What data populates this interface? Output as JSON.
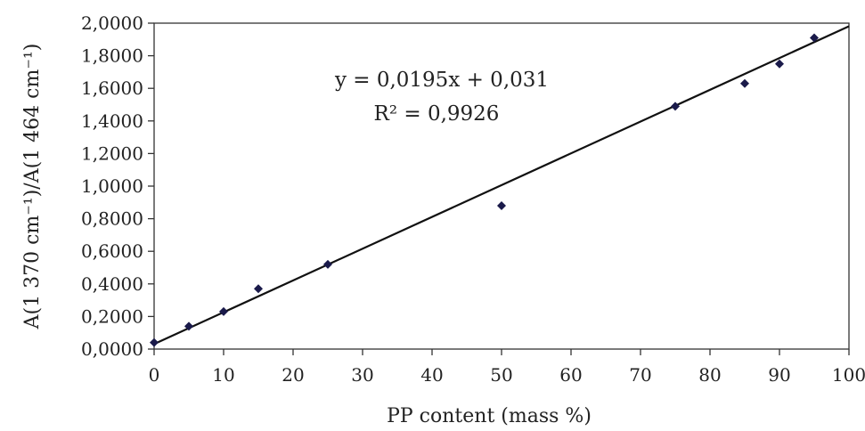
{
  "chart_data": {
    "type": "scatter",
    "xlabel": "PP content (mass %)",
    "ylabel": "A(1 370 cm⁻¹)/A(1 464 cm⁻¹)",
    "xlim": [
      0,
      100
    ],
    "ylim": [
      0,
      2
    ],
    "x_ticks": [
      0,
      10,
      20,
      30,
      40,
      50,
      60,
      70,
      80,
      90,
      100
    ],
    "x_tick_labels": [
      "0",
      "10",
      "20",
      "30",
      "40",
      "50",
      "60",
      "70",
      "80",
      "90",
      "100"
    ],
    "y_ticks": [
      0,
      0.2,
      0.4,
      0.6,
      0.8,
      1.0,
      1.2,
      1.4,
      1.6,
      1.8,
      2.0
    ],
    "y_tick_labels": [
      "0,0000",
      "0,2000",
      "0,4000",
      "0,6000",
      "0,8000",
      "1,0000",
      "1,2000",
      "1,4000",
      "1,6000",
      "1,8000",
      "2,0000"
    ],
    "grid": false,
    "points": [
      {
        "x": 0,
        "y": 0.04
      },
      {
        "x": 5,
        "y": 0.14
      },
      {
        "x": 10,
        "y": 0.23
      },
      {
        "x": 15,
        "y": 0.37
      },
      {
        "x": 25,
        "y": 0.52
      },
      {
        "x": 50,
        "y": 0.88
      },
      {
        "x": 75,
        "y": 1.49
      },
      {
        "x": 85,
        "y": 1.63
      },
      {
        "x": 90,
        "y": 1.75
      },
      {
        "x": 95,
        "y": 1.91
      }
    ],
    "trendline": {
      "slope": 0.0195,
      "intercept": 0.031,
      "x_range": [
        0,
        100
      ]
    },
    "annotations": {
      "equation": "y = 0,0195x + 0,031",
      "r_squared": "R² = 0,9926"
    },
    "colors": {
      "marker": "#1a1a4a",
      "line": "#111111",
      "axis": "#333333"
    }
  }
}
